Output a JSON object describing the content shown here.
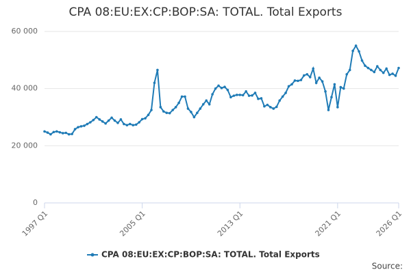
{
  "chart_data": {
    "type": "line",
    "title": "CPA 08:EU:EX:CP:BOP:SA: TOTAL. Total Exports",
    "source_label": "Source:",
    "categories": [
      "1997 Q1",
      null,
      null,
      null,
      null,
      null,
      null,
      null,
      null,
      null,
      null,
      null,
      null,
      null,
      null,
      null,
      null,
      null,
      null,
      null,
      null,
      null,
      null,
      null,
      null,
      null,
      null,
      null,
      null,
      null,
      null,
      null,
      "2005 Q1",
      null,
      null,
      null,
      null,
      null,
      null,
      null,
      null,
      null,
      null,
      null,
      null,
      null,
      null,
      null,
      null,
      null,
      null,
      null,
      null,
      null,
      null,
      null,
      null,
      null,
      null,
      null,
      null,
      null,
      null,
      null,
      "2013 Q1",
      null,
      null,
      null,
      null,
      null,
      null,
      null,
      null,
      null,
      null,
      null,
      null,
      null,
      null,
      null,
      null,
      null,
      null,
      null,
      null,
      null,
      null,
      null,
      null,
      null,
      null,
      null,
      null,
      null,
      null,
      null,
      "2021 Q1",
      null,
      null,
      null,
      null,
      null,
      null,
      null,
      null,
      null,
      null,
      null,
      null,
      null,
      null,
      null,
      null,
      null,
      null,
      null,
      "2026 Q1"
    ],
    "series": [
      {
        "name": "CPA 08:EU:EX:CP:BOP:SA: TOTAL. Total Exports",
        "color": "#1f7bb6",
        "values": [
          25000,
          24600,
          24000,
          24800,
          25000,
          24700,
          24400,
          24500,
          24000,
          24100,
          25800,
          26500,
          26800,
          27000,
          27600,
          28200,
          29000,
          30000,
          29200,
          28500,
          27800,
          28800,
          29800,
          28800,
          28000,
          29200,
          27600,
          27200,
          27600,
          27200,
          27400,
          28200,
          29300,
          29600,
          30800,
          32500,
          42000,
          46500,
          33500,
          32000,
          31500,
          31400,
          32500,
          33500,
          35000,
          37200,
          37200,
          33000,
          31800,
          30000,
          31500,
          33000,
          34500,
          35800,
          34500,
          38000,
          40000,
          41000,
          40200,
          40600,
          39500,
          37000,
          37500,
          37800,
          37800,
          37700,
          39000,
          37500,
          37600,
          38500,
          36400,
          36600,
          33800,
          34300,
          33500,
          33000,
          33600,
          35800,
          37200,
          38500,
          40800,
          41500,
          42800,
          42700,
          43000,
          44600,
          45000,
          44000,
          47000,
          42000,
          43800,
          42500,
          39000,
          32500,
          37000,
          41500,
          33500,
          40500,
          40000,
          45000,
          46500,
          53200,
          55000,
          53000,
          49800,
          48000,
          47200,
          46500,
          45800,
          47800,
          46500,
          45500,
          47000,
          44800,
          45200,
          44500,
          47200
        ]
      }
    ],
    "ylim": [
      0,
      60000
    ],
    "yticks": [
      0,
      {
        "value": 20000,
        "label": "20 000"
      },
      {
        "value": 40000,
        "label": "40 000"
      },
      {
        "value": 60000,
        "label": "60 000"
      }
    ],
    "grid": true
  }
}
